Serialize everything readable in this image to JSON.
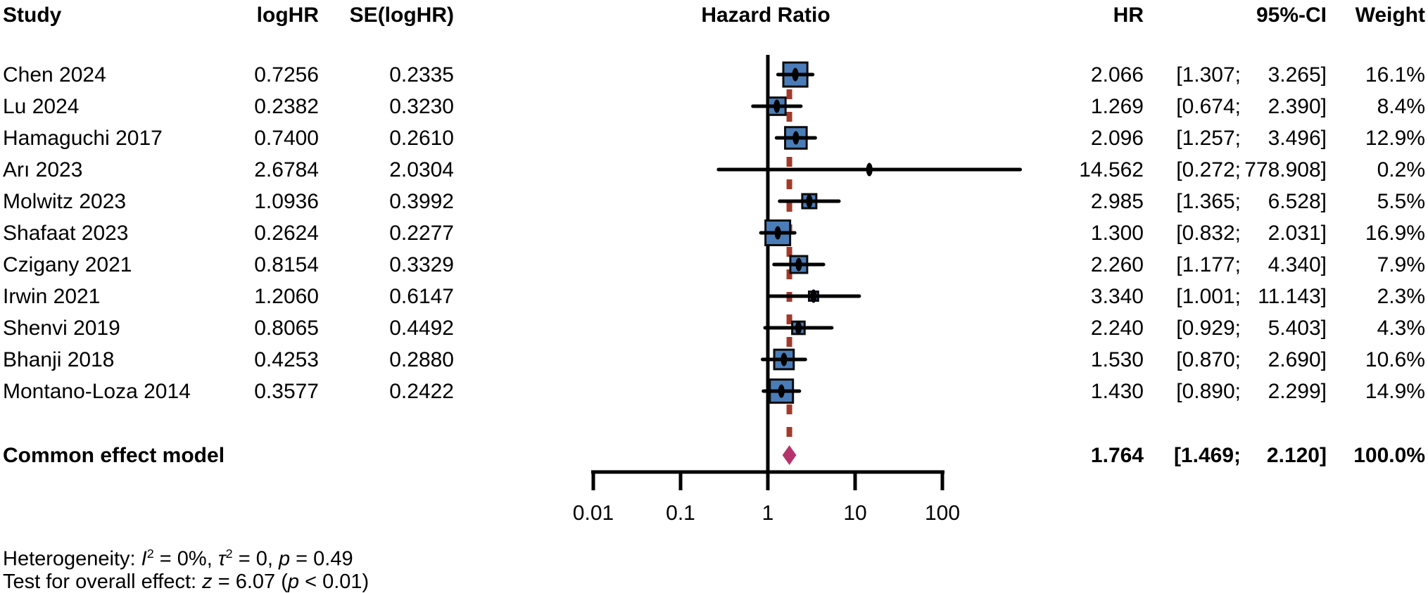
{
  "header": {
    "study": "Study",
    "loghr": "logHR",
    "se_loghr": "SE(logHR)",
    "plot_title": "Hazard Ratio",
    "hr": "HR",
    "ci": "95%-CI",
    "weight": "Weight"
  },
  "footer": {
    "heterogeneity": [
      {
        "t": "Heterogeneity: "
      },
      {
        "t": "I",
        "i": true
      },
      {
        "t": "2",
        "sup": true
      },
      {
        "t": " = 0%, "
      },
      {
        "t": "τ",
        "i": true
      },
      {
        "t": "2",
        "sup": true
      },
      {
        "t": " = 0, "
      },
      {
        "t": "p",
        "i": true
      },
      {
        "t": " = 0.49"
      }
    ],
    "overall": [
      {
        "t": "Test for overall effect: "
      },
      {
        "t": "z",
        "i": true
      },
      {
        "t": " = 6.07 ("
      },
      {
        "t": "p",
        "i": true
      },
      {
        "t": " < 0.01)"
      }
    ]
  },
  "colors": {
    "background": "#ffffff",
    "text": "#000000",
    "square": "#4a7db8",
    "square_border": "#0b0b0b",
    "marker": "#000000",
    "ci_line": "#000000",
    "reference_line": "#000000",
    "dashed_line": "#a23a2b",
    "diamond": "#b5336b",
    "axis": "#000000"
  },
  "chart_data": {
    "type": "forest",
    "title": "Hazard Ratio",
    "x_scale": "log10",
    "x_ticks": [
      0.01,
      0.1,
      1,
      10,
      100
    ],
    "x_tick_labels": [
      "0.01",
      "0.1",
      "1",
      "10",
      "100"
    ],
    "reference_value": 1,
    "common_effect_value": 1.764,
    "studies": [
      {
        "name": "Chen 2024",
        "loghr_text": "0.7256",
        "se_text": "0.2335",
        "hr": 2.066,
        "hr_text": "2.066",
        "ci": [
          1.307,
          3.265
        ],
        "ci_low_text": "[1.307;",
        "ci_high_text": "3.265]",
        "weight_pct": 16.1,
        "weight_text": "16.1%"
      },
      {
        "name": "Lu 2024",
        "loghr_text": "0.2382",
        "se_text": "0.3230",
        "hr": 1.269,
        "hr_text": "1.269",
        "ci": [
          0.674,
          2.39
        ],
        "ci_low_text": "[0.674;",
        "ci_high_text": "2.390]",
        "weight_pct": 8.4,
        "weight_text": "8.4%"
      },
      {
        "name": "Hamaguchi 2017",
        "loghr_text": "0.7400",
        "se_text": "0.2610",
        "hr": 2.096,
        "hr_text": "2.096",
        "ci": [
          1.257,
          3.496
        ],
        "ci_low_text": "[1.257;",
        "ci_high_text": "3.496]",
        "weight_pct": 12.9,
        "weight_text": "12.9%"
      },
      {
        "name": "Arı 2023",
        "loghr_text": "2.6784",
        "se_text": "2.0304",
        "hr": 14.562,
        "hr_text": "14.562",
        "ci": [
          0.272,
          778.908
        ],
        "ci_low_text": "[0.272;",
        "ci_high_text": "778.908]",
        "weight_pct": 0.2,
        "weight_text": "0.2%"
      },
      {
        "name": "Molwitz 2023",
        "loghr_text": "1.0936",
        "se_text": "0.3992",
        "hr": 2.985,
        "hr_text": "2.985",
        "ci": [
          1.365,
          6.528
        ],
        "ci_low_text": "[1.365;",
        "ci_high_text": "6.528]",
        "weight_pct": 5.5,
        "weight_text": "5.5%"
      },
      {
        "name": "Shafaat 2023",
        "loghr_text": "0.2624",
        "se_text": "0.2277",
        "hr": 1.3,
        "hr_text": "1.300",
        "ci": [
          0.832,
          2.031
        ],
        "ci_low_text": "[0.832;",
        "ci_high_text": "2.031]",
        "weight_pct": 16.9,
        "weight_text": "16.9%"
      },
      {
        "name": "Czigany 2021",
        "loghr_text": "0.8154",
        "se_text": "0.3329",
        "hr": 2.26,
        "hr_text": "2.260",
        "ci": [
          1.177,
          4.34
        ],
        "ci_low_text": "[1.177;",
        "ci_high_text": "4.340]",
        "weight_pct": 7.9,
        "weight_text": "7.9%"
      },
      {
        "name": "Irwin 2021",
        "loghr_text": "1.2060",
        "se_text": "0.6147",
        "hr": 3.34,
        "hr_text": "3.340",
        "ci": [
          1.001,
          11.143
        ],
        "ci_low_text": "[1.001;",
        "ci_high_text": "11.143]",
        "weight_pct": 2.3,
        "weight_text": "2.3%"
      },
      {
        "name": "Shenvi 2019",
        "loghr_text": "0.8065",
        "se_text": "0.4492",
        "hr": 2.24,
        "hr_text": "2.240",
        "ci": [
          0.929,
          5.403
        ],
        "ci_low_text": "[0.929;",
        "ci_high_text": "5.403]",
        "weight_pct": 4.3,
        "weight_text": "4.3%"
      },
      {
        "name": "Bhanji 2018",
        "loghr_text": "0.4253",
        "se_text": "0.2880",
        "hr": 1.53,
        "hr_text": "1.530",
        "ci": [
          0.87,
          2.69
        ],
        "ci_low_text": "[0.870;",
        "ci_high_text": "2.690]",
        "weight_pct": 10.6,
        "weight_text": "10.6%"
      },
      {
        "name": "Montano-Loza 2014",
        "loghr_text": "0.3577",
        "se_text": "0.2422",
        "hr": 1.43,
        "hr_text": "1.430",
        "ci": [
          0.89,
          2.299
        ],
        "ci_low_text": "[0.890;",
        "ci_high_text": "2.299]",
        "weight_pct": 14.9,
        "weight_text": "14.9%"
      }
    ],
    "summary": {
      "name": "Common effect model",
      "hr": 1.764,
      "hr_text": "1.764",
      "ci": [
        1.469,
        2.12
      ],
      "ci_low_text": "[1.469;",
      "ci_high_text": "2.120]",
      "weight_pct": 100.0,
      "weight_text": "100.0%"
    },
    "heterogeneity_note": "I^2 = 0%, tau^2 = 0, p = 0.49",
    "overall_effect_note": "z = 6.07 (p < 0.01)"
  }
}
